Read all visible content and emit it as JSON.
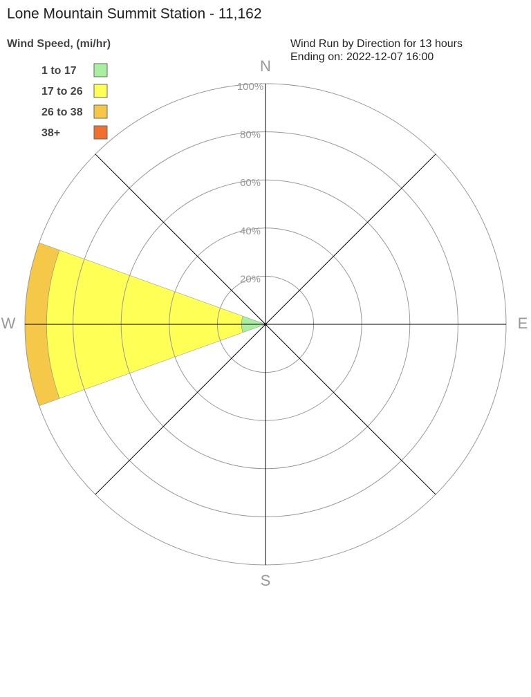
{
  "chart_data": {
    "type": "windrose",
    "title": "Lone Mountain Summit Station - 11,162",
    "legend_title": "Wind Speed, (mi/hr)",
    "subtitle": [
      "Wind Run by Direction for 13 hours",
      "Ending on: 2022-12-07 16:00"
    ],
    "categories": [
      "N",
      null,
      "E",
      null,
      "S",
      null,
      "W",
      null
    ],
    "series": [
      {
        "name": "1 to 17",
        "color": "#a8f0a0",
        "values": [
          0,
          0,
          0,
          0,
          0,
          0,
          10,
          0
        ]
      },
      {
        "name": "17 to 26",
        "color": "#ffff55",
        "values": [
          0,
          0,
          0,
          0,
          0,
          0,
          81,
          0
        ]
      },
      {
        "name": "26 to 38",
        "color": "#f5c84a",
        "values": [
          0,
          0,
          0,
          0,
          0,
          0,
          9,
          0
        ]
      },
      {
        "name": "38+",
        "color": "#f07030",
        "values": [
          0,
          0,
          0,
          0,
          0,
          0,
          0,
          0
        ]
      }
    ],
    "rlim": [
      0,
      100
    ],
    "rticks": [
      {
        "value": 20,
        "label": "20%"
      },
      {
        "value": 40,
        "label": "40%"
      },
      {
        "value": 60,
        "label": "60%"
      },
      {
        "value": 80,
        "label": "80%"
      },
      {
        "value": 100,
        "label": "100%"
      }
    ]
  }
}
